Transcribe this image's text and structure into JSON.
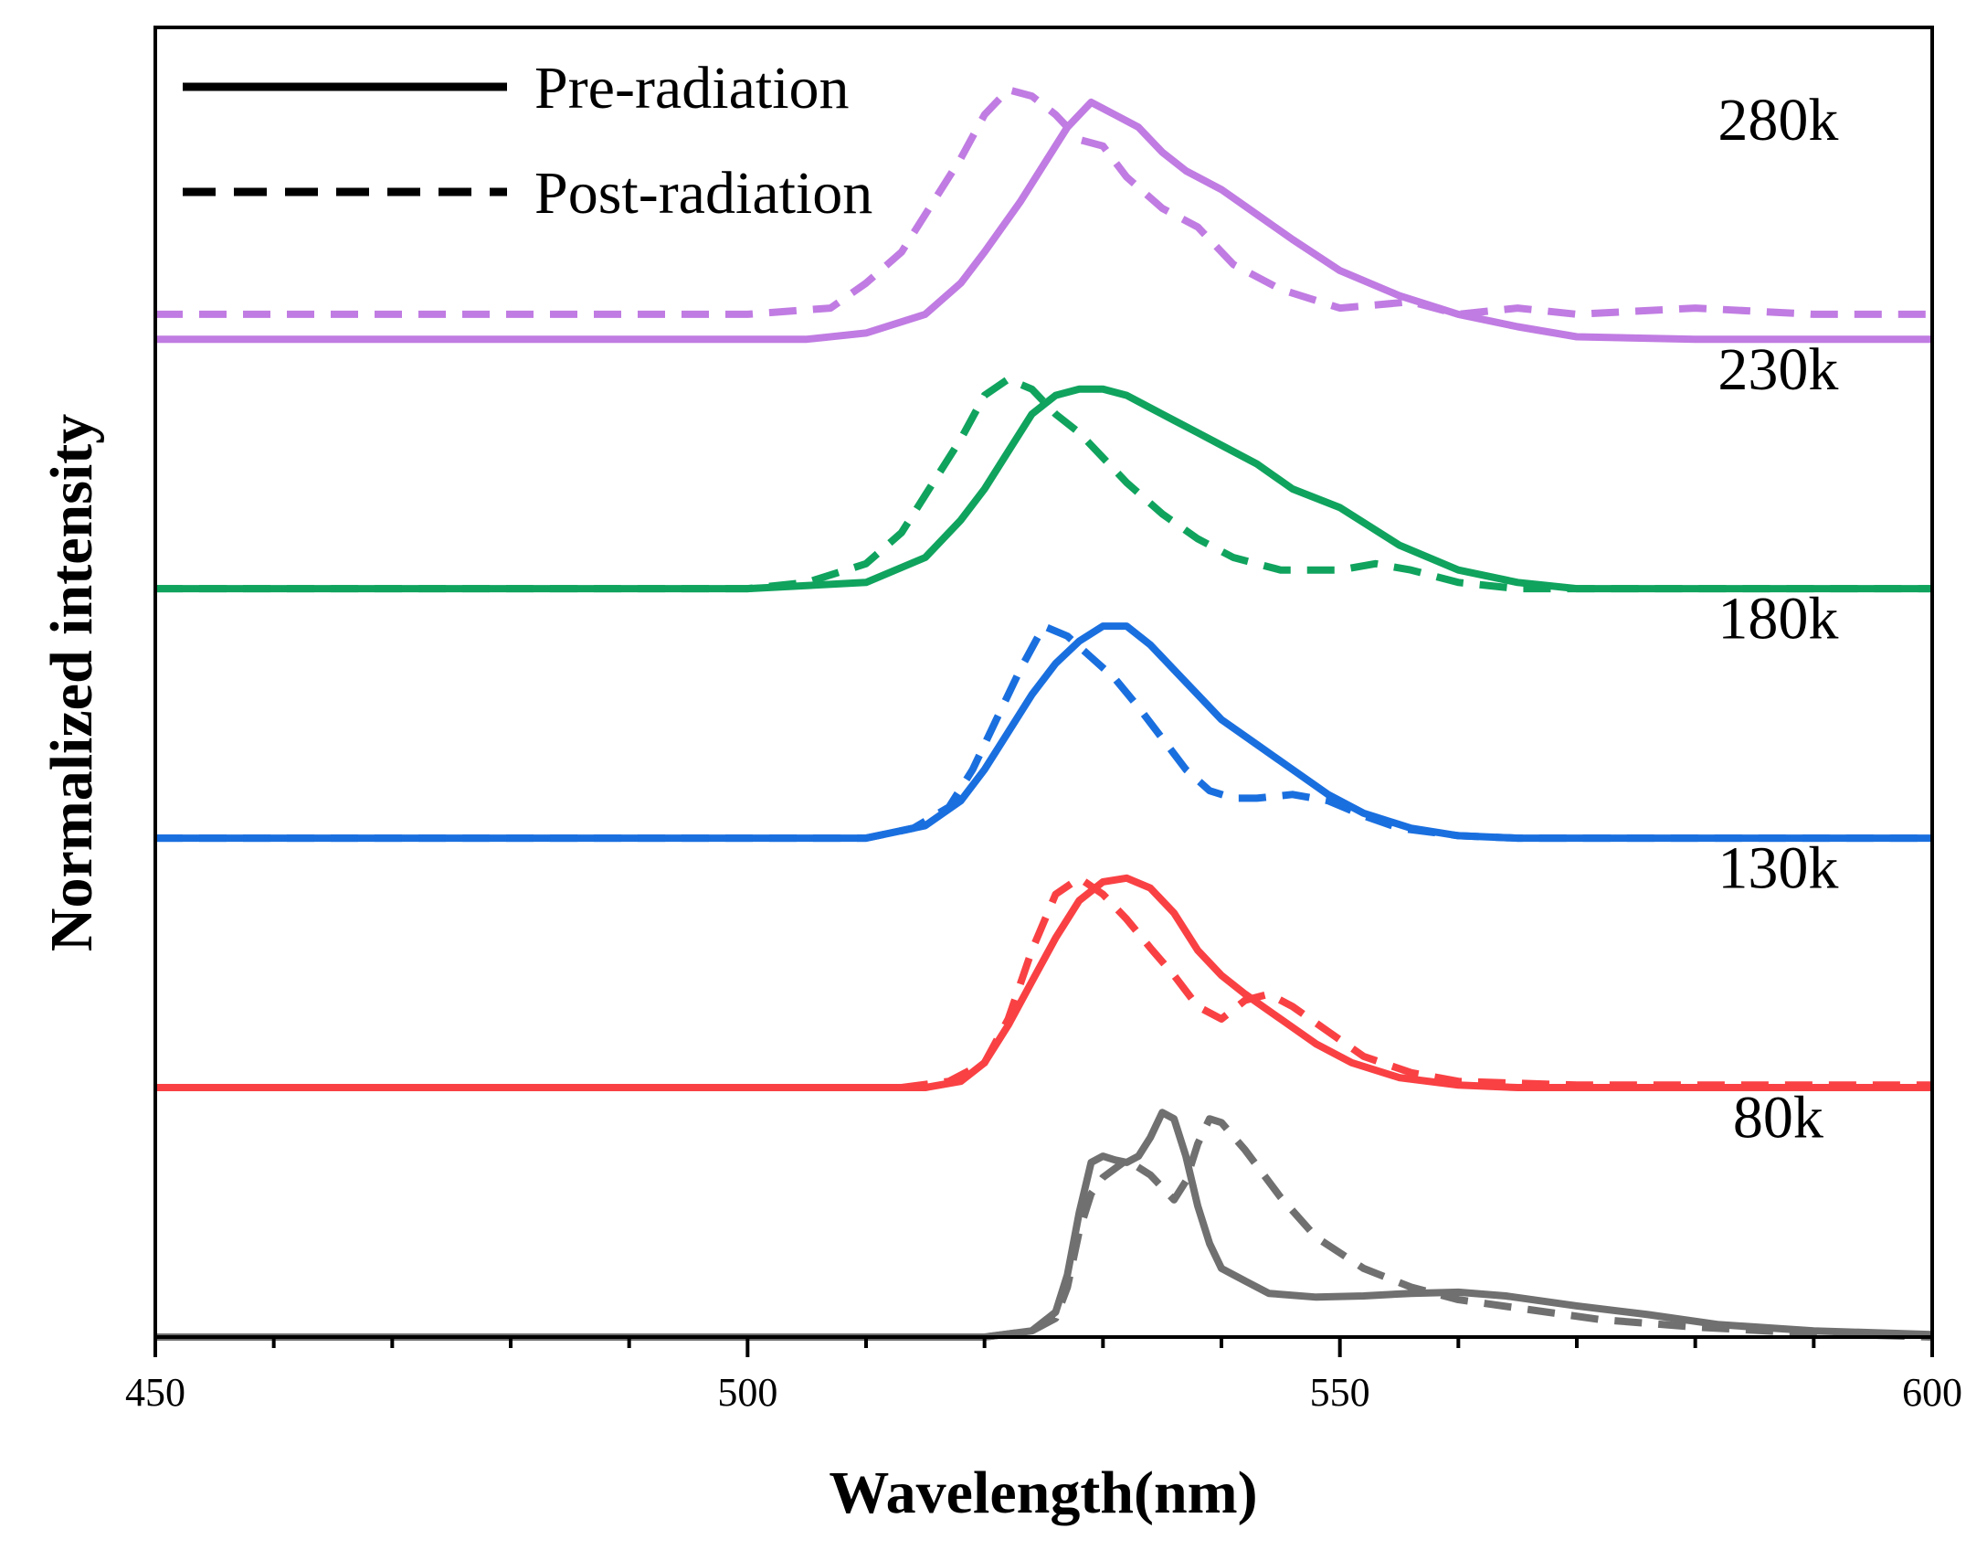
{
  "chart_data": {
    "type": "line",
    "title": "",
    "xlabel": "Wavelength(nm)",
    "ylabel": "Normalized intensity",
    "xlim": [
      450,
      600
    ],
    "ylim": [
      0,
      10.5
    ],
    "x_ticks": [
      450,
      500,
      550,
      600
    ],
    "x_tick_labels": [
      "450",
      "500",
      "550",
      "600"
    ],
    "y_ticks_shown": false,
    "grid": false,
    "legend": {
      "placement": "top-left",
      "entries": [
        {
          "label": "Pre-radiation",
          "style": "solid"
        },
        {
          "label": "Post-radiation",
          "style": "dashed"
        }
      ]
    },
    "series": [
      {
        "name": "280k",
        "label": "280k",
        "color": "#c07ce2",
        "offset": 8,
        "pre": [
          [
            450,
            0.0
          ],
          [
            505,
            0.0
          ],
          [
            510,
            0.05
          ],
          [
            515,
            0.2
          ],
          [
            518,
            0.45
          ],
          [
            520,
            0.7
          ],
          [
            523,
            1.1
          ],
          [
            525,
            1.4
          ],
          [
            527,
            1.7
          ],
          [
            529,
            1.9
          ],
          [
            531,
            1.8
          ],
          [
            533,
            1.7
          ],
          [
            535,
            1.5
          ],
          [
            537,
            1.35
          ],
          [
            540,
            1.2
          ],
          [
            543,
            1.0
          ],
          [
            546,
            0.8
          ],
          [
            550,
            0.55
          ],
          [
            555,
            0.35
          ],
          [
            560,
            0.2
          ],
          [
            565,
            0.1
          ],
          [
            570,
            0.02
          ],
          [
            580,
            0.0
          ],
          [
            600,
            0.0
          ]
        ],
        "post": [
          [
            450,
            0.2
          ],
          [
            460,
            0.2
          ],
          [
            470,
            0.2
          ],
          [
            480,
            0.2
          ],
          [
            490,
            0.2
          ],
          [
            500,
            0.2
          ],
          [
            507,
            0.25
          ],
          [
            510,
            0.45
          ],
          [
            513,
            0.7
          ],
          [
            515,
            1.0
          ],
          [
            518,
            1.45
          ],
          [
            520,
            1.8
          ],
          [
            522,
            2.0
          ],
          [
            524,
            1.95
          ],
          [
            526,
            1.8
          ],
          [
            528,
            1.6
          ],
          [
            530,
            1.55
          ],
          [
            532,
            1.3
          ],
          [
            535,
            1.05
          ],
          [
            538,
            0.9
          ],
          [
            541,
            0.6
          ],
          [
            545,
            0.4
          ],
          [
            550,
            0.25
          ],
          [
            556,
            0.3
          ],
          [
            560,
            0.2
          ],
          [
            565,
            0.25
          ],
          [
            570,
            0.2
          ],
          [
            580,
            0.25
          ],
          [
            590,
            0.2
          ],
          [
            600,
            0.2
          ]
        ]
      },
      {
        "name": "230k",
        "label": "230k",
        "color": "#10a35e",
        "offset": 6,
        "pre": [
          [
            450,
            0.0
          ],
          [
            500,
            0.0
          ],
          [
            510,
            0.05
          ],
          [
            515,
            0.25
          ],
          [
            518,
            0.55
          ],
          [
            520,
            0.8
          ],
          [
            522,
            1.1
          ],
          [
            524,
            1.4
          ],
          [
            526,
            1.55
          ],
          [
            528,
            1.6
          ],
          [
            530,
            1.6
          ],
          [
            532,
            1.55
          ],
          [
            534,
            1.45
          ],
          [
            536,
            1.35
          ],
          [
            538,
            1.25
          ],
          [
            540,
            1.15
          ],
          [
            543,
            1.0
          ],
          [
            546,
            0.8
          ],
          [
            550,
            0.65
          ],
          [
            555,
            0.35
          ],
          [
            560,
            0.15
          ],
          [
            565,
            0.05
          ],
          [
            570,
            0.0
          ],
          [
            600,
            0.0
          ]
        ],
        "post": [
          [
            450,
            0.0
          ],
          [
            500,
            0.0
          ],
          [
            505,
            0.05
          ],
          [
            510,
            0.2
          ],
          [
            513,
            0.45
          ],
          [
            515,
            0.75
          ],
          [
            518,
            1.2
          ],
          [
            520,
            1.55
          ],
          [
            522,
            1.68
          ],
          [
            524,
            1.6
          ],
          [
            526,
            1.4
          ],
          [
            528,
            1.25
          ],
          [
            530,
            1.05
          ],
          [
            532,
            0.85
          ],
          [
            535,
            0.6
          ],
          [
            538,
            0.4
          ],
          [
            541,
            0.25
          ],
          [
            545,
            0.15
          ],
          [
            550,
            0.15
          ],
          [
            553,
            0.2
          ],
          [
            556,
            0.15
          ],
          [
            560,
            0.05
          ],
          [
            565,
            0.0
          ],
          [
            600,
            0.0
          ]
        ]
      },
      {
        "name": "180k",
        "label": "180k",
        "color": "#1a6fdf",
        "offset": 4,
        "pre": [
          [
            450,
            0.0
          ],
          [
            510,
            0.0
          ],
          [
            515,
            0.1
          ],
          [
            518,
            0.3
          ],
          [
            520,
            0.55
          ],
          [
            522,
            0.85
          ],
          [
            524,
            1.15
          ],
          [
            526,
            1.4
          ],
          [
            528,
            1.58
          ],
          [
            530,
            1.7
          ],
          [
            532,
            1.7
          ],
          [
            534,
            1.55
          ],
          [
            536,
            1.35
          ],
          [
            538,
            1.15
          ],
          [
            540,
            0.95
          ],
          [
            543,
            0.75
          ],
          [
            546,
            0.55
          ],
          [
            549,
            0.35
          ],
          [
            552,
            0.2
          ],
          [
            556,
            0.08
          ],
          [
            560,
            0.02
          ],
          [
            565,
            0.0
          ],
          [
            600,
            0.0
          ]
        ],
        "post": [
          [
            450,
            0.0
          ],
          [
            510,
            0.0
          ],
          [
            514,
            0.08
          ],
          [
            517,
            0.25
          ],
          [
            519,
            0.55
          ],
          [
            521,
            0.95
          ],
          [
            523,
            1.35
          ],
          [
            525,
            1.7
          ],
          [
            527,
            1.62
          ],
          [
            529,
            1.45
          ],
          [
            531,
            1.28
          ],
          [
            533,
            1.05
          ],
          [
            535,
            0.8
          ],
          [
            537,
            0.55
          ],
          [
            539,
            0.38
          ],
          [
            541,
            0.32
          ],
          [
            543,
            0.32
          ],
          [
            546,
            0.35
          ],
          [
            549,
            0.3
          ],
          [
            552,
            0.18
          ],
          [
            555,
            0.08
          ],
          [
            560,
            0.02
          ],
          [
            565,
            0.0
          ],
          [
            600,
            0.0
          ]
        ]
      },
      {
        "name": "130k",
        "label": "130k",
        "color": "#f94144",
        "offset": 2,
        "pre": [
          [
            450,
            0.0
          ],
          [
            515,
            0.0
          ],
          [
            518,
            0.05
          ],
          [
            520,
            0.2
          ],
          [
            522,
            0.5
          ],
          [
            524,
            0.85
          ],
          [
            526,
            1.2
          ],
          [
            528,
            1.5
          ],
          [
            530,
            1.65
          ],
          [
            532,
            1.68
          ],
          [
            534,
            1.6
          ],
          [
            536,
            1.4
          ],
          [
            538,
            1.1
          ],
          [
            540,
            0.9
          ],
          [
            542,
            0.75
          ],
          [
            545,
            0.55
          ],
          [
            548,
            0.35
          ],
          [
            551,
            0.2
          ],
          [
            555,
            0.08
          ],
          [
            560,
            0.02
          ],
          [
            565,
            0.0
          ],
          [
            600,
            0.0
          ]
        ],
        "post": [
          [
            450,
            0.0
          ],
          [
            513,
            0.0
          ],
          [
            517,
            0.05
          ],
          [
            520,
            0.2
          ],
          [
            522,
            0.55
          ],
          [
            524,
            1.1
          ],
          [
            526,
            1.55
          ],
          [
            528,
            1.68
          ],
          [
            530,
            1.55
          ],
          [
            532,
            1.35
          ],
          [
            534,
            1.12
          ],
          [
            536,
            0.9
          ],
          [
            538,
            0.65
          ],
          [
            540,
            0.55
          ],
          [
            542,
            0.7
          ],
          [
            544,
            0.75
          ],
          [
            546,
            0.65
          ],
          [
            549,
            0.45
          ],
          [
            552,
            0.25
          ],
          [
            556,
            0.12
          ],
          [
            560,
            0.05
          ],
          [
            570,
            0.02
          ],
          [
            600,
            0.02
          ]
        ]
      },
      {
        "name": "80k",
        "label": "80k",
        "color": "#707070",
        "offset": 0,
        "pre": [
          [
            450,
            0.0
          ],
          [
            520,
            0.0
          ],
          [
            524,
            0.05
          ],
          [
            526,
            0.2
          ],
          [
            527,
            0.5
          ],
          [
            528,
            1.0
          ],
          [
            529,
            1.4
          ],
          [
            530,
            1.45
          ],
          [
            531,
            1.42
          ],
          [
            532,
            1.4
          ],
          [
            533,
            1.45
          ],
          [
            534,
            1.6
          ],
          [
            535,
            1.8
          ],
          [
            536,
            1.75
          ],
          [
            537,
            1.45
          ],
          [
            538,
            1.05
          ],
          [
            539,
            0.75
          ],
          [
            540,
            0.55
          ],
          [
            542,
            0.45
          ],
          [
            544,
            0.35
          ],
          [
            548,
            0.32
          ],
          [
            552,
            0.33
          ],
          [
            556,
            0.35
          ],
          [
            560,
            0.36
          ],
          [
            564,
            0.33
          ],
          [
            570,
            0.25
          ],
          [
            576,
            0.18
          ],
          [
            582,
            0.1
          ],
          [
            590,
            0.05
          ],
          [
            600,
            0.02
          ]
        ],
        "post": [
          [
            450,
            0.0
          ],
          [
            520,
            0.0
          ],
          [
            524,
            0.05
          ],
          [
            526,
            0.15
          ],
          [
            527,
            0.4
          ],
          [
            528,
            0.85
          ],
          [
            529,
            1.15
          ],
          [
            530,
            1.28
          ],
          [
            532,
            1.42
          ],
          [
            534,
            1.3
          ],
          [
            536,
            1.1
          ],
          [
            537,
            1.25
          ],
          [
            538,
            1.55
          ],
          [
            539,
            1.75
          ],
          [
            540,
            1.72
          ],
          [
            542,
            1.5
          ],
          [
            545,
            1.12
          ],
          [
            548,
            0.8
          ],
          [
            552,
            0.55
          ],
          [
            556,
            0.4
          ],
          [
            560,
            0.3
          ],
          [
            566,
            0.22
          ],
          [
            572,
            0.14
          ],
          [
            580,
            0.08
          ],
          [
            590,
            0.03
          ],
          [
            600,
            0.0
          ]
        ]
      }
    ]
  }
}
